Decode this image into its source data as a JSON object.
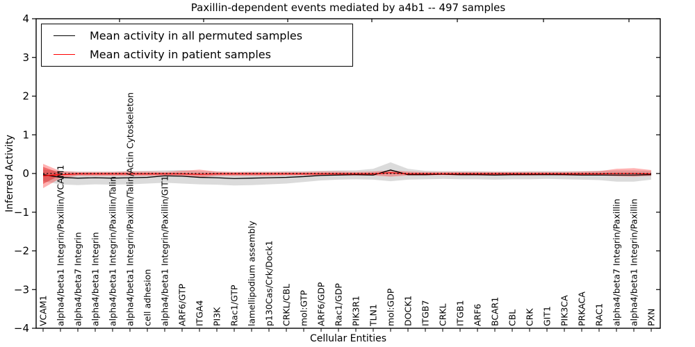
{
  "chart_data": {
    "type": "line",
    "title": "Paxillin-dependent events mediated by a4b1 -- 497 samples",
    "xlabel": "Cellular Entities",
    "ylabel": "Inferred Activity",
    "ylim": [
      -4,
      4
    ],
    "yticks": [
      -4,
      -3,
      -2,
      -1,
      0,
      1,
      2,
      3,
      4
    ],
    "grid": false,
    "legend_position": "upper left",
    "categories": [
      "VCAM1",
      "alpha4/beta1 Integrin/Paxillin/VCAM1",
      "alpha4/beta7 Integrin",
      "alpha4/beta1 Integrin",
      "alpha4/beta1 Integrin/Paxillin/Talin",
      "alpha4/beta1 Integrin/Paxillin/Talin/Actin Cytoskeleton",
      "cell adhesion",
      "alpha4/beta1 Integrin/Paxillin/GIT1",
      "ARF6/GTP",
      "ITGA4",
      "PI3K",
      "Rac1/GTP",
      "lamellipodium assembly",
      "p130Cas/Crk/Dock1",
      "CRKL/CBL",
      "mol:GTP",
      "ARF6/GDP",
      "Rac1/GDP",
      "PIK3R1",
      "TLN1",
      "mol:GDP",
      "DOCK1",
      "ITGB7",
      "CRKL",
      "ITGB1",
      "ARF6",
      "BCAR1",
      "CBL",
      "CRK",
      "GIT1",
      "PIK3CA",
      "PRKACA",
      "RAC1",
      "alpha4/beta7 Integrin/Paxillin",
      "alpha4/beta1 Integrin/Paxillin",
      "PXN"
    ],
    "zero_line": {
      "y": 0,
      "color": "#000000",
      "style": "dashed"
    },
    "series": [
      {
        "name": "Mean activity in all permuted samples",
        "color": "#000000",
        "values": [
          -0.03,
          -0.1,
          -0.12,
          -0.11,
          -0.12,
          -0.11,
          -0.1,
          -0.06,
          -0.07,
          -0.1,
          -0.11,
          -0.13,
          -0.12,
          -0.11,
          -0.1,
          -0.08,
          -0.05,
          -0.04,
          -0.03,
          -0.04,
          0.09,
          -0.03,
          -0.03,
          -0.02,
          -0.03,
          -0.03,
          -0.04,
          -0.03,
          -0.03,
          -0.03,
          -0.03,
          -0.04,
          -0.04,
          -0.04,
          -0.04,
          -0.03
        ],
        "bands": [
          {
            "fill": "rgba(0,0,0,0.14)",
            "start": 0,
            "upper": [
              0.1,
              0.06,
              0.05,
              0.05,
              0.05,
              0.06,
              0.07,
              0.08,
              0.09,
              0.06,
              0.05,
              0.04,
              0.05,
              0.05,
              0.06,
              0.06,
              0.07,
              0.08,
              0.08,
              0.12,
              0.29,
              0.12,
              0.07,
              0.06,
              0.06,
              0.06,
              0.05,
              0.05,
              0.06,
              0.06,
              0.06,
              0.06,
              0.07,
              0.08,
              0.08,
              0.07
            ],
            "lower": [
              -0.2,
              -0.28,
              -0.3,
              -0.28,
              -0.29,
              -0.28,
              -0.26,
              -0.24,
              -0.26,
              -0.28,
              -0.29,
              -0.31,
              -0.3,
              -0.28,
              -0.26,
              -0.22,
              -0.18,
              -0.16,
              -0.15,
              -0.16,
              -0.2,
              -0.16,
              -0.15,
              -0.14,
              -0.15,
              -0.15,
              -0.16,
              -0.15,
              -0.15,
              -0.14,
              -0.15,
              -0.16,
              -0.17,
              -0.21,
              -0.21,
              -0.16
            ]
          }
        ]
      },
      {
        "name": "Mean activity in patient samples",
        "color": "#ff0000",
        "values": [
          -0.06,
          -0.03,
          -0.01,
          -0.01,
          -0.01,
          -0.01,
          -0.01,
          -0.01,
          -0.01,
          -0.02,
          -0.01,
          -0.01,
          -0.01,
          -0.01,
          -0.01,
          -0.01,
          -0.01,
          -0.01,
          -0.01,
          -0.01,
          0.02,
          -0.01,
          -0.01,
          -0.01,
          -0.01,
          -0.01,
          -0.01,
          -0.01,
          -0.01,
          -0.01,
          -0.01,
          -0.01,
          -0.01,
          0.0,
          0.0,
          -0.01
        ],
        "bands": [
          {
            "fill": "rgba(255,0,0,0.30)",
            "start": 0,
            "upper": [
              0.25,
              0.06,
              0.04,
              0.04,
              0.04,
              0.05,
              0.05,
              0.04,
              0.07,
              0.1,
              0.05,
              0.04,
              0.04,
              0.04,
              0.04,
              0.04,
              0.05,
              0.05,
              0.04,
              0.05,
              0.08,
              0.05,
              0.04,
              0.04,
              0.04,
              0.04,
              0.04,
              0.04,
              0.04,
              0.04,
              0.04,
              0.05,
              0.06,
              0.12,
              0.14,
              0.09
            ],
            "lower": [
              -0.38,
              -0.12,
              -0.06,
              -0.06,
              -0.06,
              -0.06,
              -0.06,
              -0.06,
              -0.07,
              -0.1,
              -0.06,
              -0.06,
              -0.06,
              -0.06,
              -0.05,
              -0.05,
              -0.05,
              -0.05,
              -0.05,
              -0.05,
              -0.08,
              -0.05,
              -0.05,
              -0.04,
              -0.05,
              -0.05,
              -0.05,
              -0.05,
              -0.05,
              -0.04,
              -0.05,
              -0.05,
              -0.05,
              -0.07,
              -0.08,
              -0.06
            ]
          },
          {
            "fill": "rgba(220,0,0,0.40)",
            "start": 0,
            "upper": [
              0.17,
              0.01
            ],
            "lower": [
              -0.27,
              -0.04
            ]
          }
        ]
      }
    ]
  },
  "legend": {
    "entries": [
      {
        "label": "Mean activity in all permuted samples",
        "color": "#000000"
      },
      {
        "label": "Mean activity in patient samples",
        "color": "#ff0000"
      }
    ]
  },
  "colors": {
    "permuted_line": "#000000",
    "patient_line": "#ff0000",
    "permuted_band": "rgba(0,0,0,0.14)",
    "patient_band": "rgba(255,0,0,0.30)",
    "frame": "#000000",
    "background": "#ffffff"
  }
}
